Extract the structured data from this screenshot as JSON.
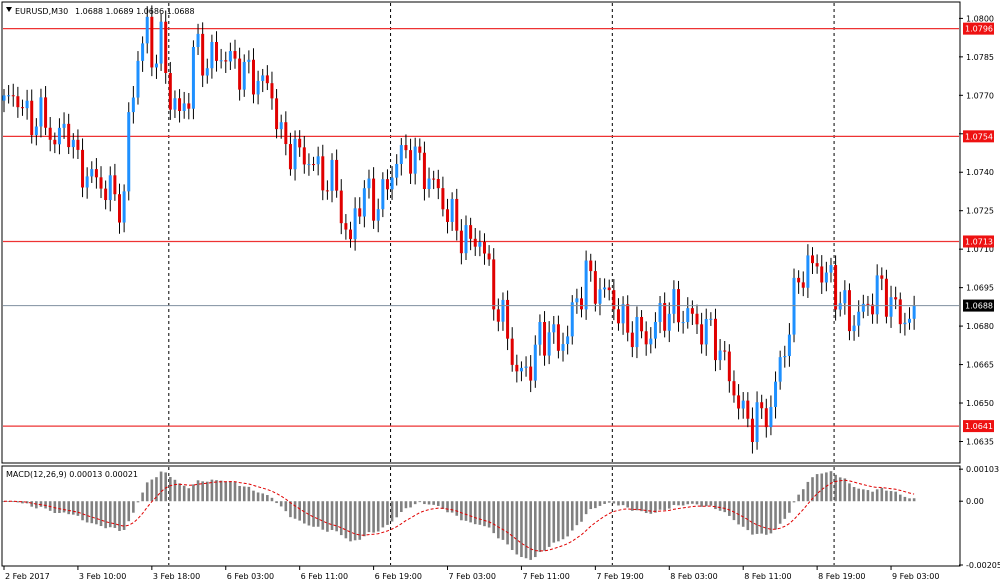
{
  "chart_data": [
    {
      "type": "candlestick",
      "title": "EURUSD,M30",
      "ohlc_header": "1.0688 1.0689 1.0686 1.0688",
      "ylim": [
        1.0627,
        1.0806
      ],
      "y_ticks": [
        "1.0800",
        "1.0785",
        "1.0770",
        "1.0755",
        "1.0740",
        "1.0725",
        "1.0710",
        "1.0695",
        "1.0680",
        "1.0665",
        "1.0650",
        "1.0635"
      ],
      "y_tick_values": [
        1.08,
        1.0785,
        1.077,
        1.0755,
        1.074,
        1.0725,
        1.071,
        1.0695,
        1.068,
        1.0665,
        1.065,
        1.0635
      ],
      "x_ticks": [
        "2 Feb 2017",
        "3 Feb 10:00",
        "3 Feb 18:00",
        "6 Feb 03:00",
        "6 Feb 11:00",
        "6 Feb 19:00",
        "7 Feb 03:00",
        "7 Feb 11:00",
        "7 Feb 19:00",
        "8 Feb 03:00",
        "8 Feb 11:00",
        "8 Feb 19:00",
        "9 Feb 03:00"
      ],
      "x_tick_index": [
        0,
        16,
        32,
        48,
        64,
        80,
        96,
        112,
        128,
        144,
        160,
        176,
        192
      ],
      "period_separator_index": [
        40,
        88,
        136,
        184,
        232
      ],
      "current_price": "1.0688",
      "current_price_value": 1.0688,
      "levels": [
        {
          "label": "1.0796",
          "value": 1.0796
        },
        {
          "label": "1.0754",
          "value": 1.0754
        },
        {
          "label": "1.0713",
          "value": 1.0713
        },
        {
          "label": "1.0641",
          "value": 1.0641
        }
      ],
      "bars_count": 198,
      "anchors": [
        [
          0,
          1.0767
        ],
        [
          3,
          1.077
        ],
        [
          5,
          1.076
        ],
        [
          8,
          1.0762
        ],
        [
          11,
          1.0752
        ],
        [
          14,
          1.0758
        ],
        [
          16,
          1.0742
        ],
        [
          19,
          1.0738
        ],
        [
          22,
          1.0734
        ],
        [
          24,
          1.073
        ],
        [
          26,
          1.0728
        ],
        [
          27,
          1.076
        ],
        [
          29,
          1.0785
        ],
        [
          31,
          1.0795
        ],
        [
          32,
          1.0785
        ],
        [
          34,
          1.079
        ],
        [
          36,
          1.077
        ],
        [
          38,
          1.0762
        ],
        [
          40,
          1.077
        ],
        [
          41,
          1.0788
        ],
        [
          44,
          1.0783
        ],
        [
          47,
          1.0786
        ],
        [
          50,
          1.0782
        ],
        [
          53,
          1.0778
        ],
        [
          56,
          1.0775
        ],
        [
          58,
          1.0771
        ],
        [
          60,
          1.0752
        ],
        [
          63,
          1.0748
        ],
        [
          66,
          1.0745
        ],
        [
          69,
          1.0738
        ],
        [
          72,
          1.0735
        ],
        [
          74,
          1.0715
        ],
        [
          75,
          1.0712
        ],
        [
          76,
          1.0725
        ],
        [
          78,
          1.0732
        ],
        [
          81,
          1.0727
        ],
        [
          83,
          1.0735
        ],
        [
          85,
          1.0745
        ],
        [
          88,
          1.0748
        ],
        [
          91,
          1.074
        ],
        [
          93,
          1.0735
        ],
        [
          96,
          1.0725
        ],
        [
          98,
          1.0718
        ],
        [
          101,
          1.0712
        ],
        [
          103,
          1.0715
        ],
        [
          105,
          1.07
        ],
        [
          107,
          1.0685
        ],
        [
          109,
          1.0678
        ],
        [
          111,
          1.066
        ],
        [
          114,
          1.0665
        ],
        [
          116,
          1.0675
        ],
        [
          118,
          1.0678
        ],
        [
          120,
          1.0672
        ],
        [
          122,
          1.0678
        ],
        [
          124,
          1.069
        ],
        [
          126,
          1.07
        ],
        [
          128,
          1.0695
        ],
        [
          130,
          1.0693
        ],
        [
          132,
          1.069
        ],
        [
          134,
          1.068
        ],
        [
          137,
          1.0678
        ],
        [
          139,
          1.0675
        ],
        [
          142,
          1.0683
        ],
        [
          144,
          1.0687
        ],
        [
          146,
          1.0685
        ],
        [
          148,
          1.0685
        ],
        [
          150,
          1.068
        ],
        [
          152,
          1.0679
        ],
        [
          154,
          1.0675
        ],
        [
          156,
          1.0665
        ],
        [
          158,
          1.0655
        ],
        [
          160,
          1.0645
        ],
        [
          162,
          1.0643
        ],
        [
          164,
          1.0645
        ],
        [
          166,
          1.0648
        ],
        [
          168,
          1.0665
        ],
        [
          170,
          1.068
        ],
        [
          172,
          1.07
        ],
        [
          174,
          1.0702
        ],
        [
          176,
          1.0705
        ],
        [
          177,
          1.07
        ],
        [
          179,
          1.0698
        ],
        [
          181,
          1.069
        ],
        [
          183,
          1.0682
        ],
        [
          185,
          1.0684
        ],
        [
          187,
          1.0688
        ],
        [
          189,
          1.0695
        ],
        [
          191,
          1.0692
        ],
        [
          192,
          1.069
        ],
        [
          194,
          1.0682
        ],
        [
          196,
          1.0685
        ],
        [
          197,
          1.0688
        ]
      ]
    },
    {
      "type": "histogram",
      "title": "MACD(12,26,9) 0.00013 0.00021",
      "ylim": [
        -0.00205,
        0.0011
      ],
      "y_ticks": [
        "0.00103",
        "0.00",
        "-0.00205"
      ],
      "y_tick_values": [
        0.00103,
        0.0,
        -0.00205
      ]
    }
  ]
}
